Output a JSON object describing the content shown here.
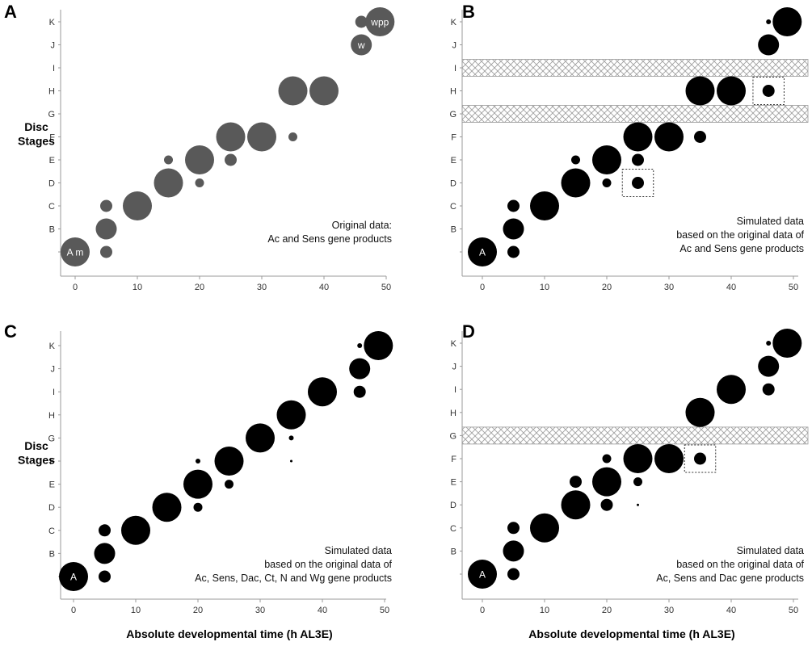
{
  "figure": {
    "y_axis_title": [
      "Disc",
      "Stages"
    ],
    "x_axis_title": "Absolute developmental time (h AL3E)"
  },
  "chart_data": [
    {
      "type": "scatter",
      "letter": "A",
      "color": "#595959",
      "xlim": [
        -2,
        52
      ],
      "xticks": [
        0,
        10,
        20,
        30,
        40,
        50
      ],
      "categories": [
        "A",
        "B",
        "C",
        "D",
        "E",
        "F",
        "G",
        "H",
        "I",
        "J",
        "K"
      ],
      "ytick_labels": [
        "",
        "B",
        "C",
        "D",
        "E",
        "F",
        "G",
        "H",
        "I",
        "J",
        "K"
      ],
      "annotation": [
        "Original data:",
        "Ac and Sens gene products"
      ],
      "hatched_stages": [],
      "dotted_boxes": [],
      "points": [
        {
          "x": 0,
          "stage": "A",
          "size": "large",
          "label": "A m"
        },
        {
          "x": 5,
          "stage": "A",
          "size": "small"
        },
        {
          "x": 5,
          "stage": "B",
          "size": "medium"
        },
        {
          "x": 5,
          "stage": "C",
          "size": "small"
        },
        {
          "x": 10,
          "stage": "C",
          "size": "large"
        },
        {
          "x": 15,
          "stage": "D",
          "size": "large"
        },
        {
          "x": 15,
          "stage": "E",
          "size": "tiny"
        },
        {
          "x": 20,
          "stage": "D",
          "size": "tiny"
        },
        {
          "x": 20,
          "stage": "E",
          "size": "large"
        },
        {
          "x": 25,
          "stage": "E",
          "size": "small"
        },
        {
          "x": 25,
          "stage": "F",
          "size": "large"
        },
        {
          "x": 30,
          "stage": "F",
          "size": "large"
        },
        {
          "x": 35,
          "stage": "F",
          "size": "tiny"
        },
        {
          "x": 35,
          "stage": "H",
          "size": "large"
        },
        {
          "x": 40,
          "stage": "H",
          "size": "large"
        },
        {
          "x": 46,
          "stage": "J",
          "size": "medium",
          "label": "w"
        },
        {
          "x": 46,
          "stage": "K",
          "size": "small"
        },
        {
          "x": 49,
          "stage": "K",
          "size": "large",
          "label": "wpp"
        }
      ]
    },
    {
      "type": "scatter",
      "letter": "B",
      "color": "#000000",
      "xlim": [
        -2,
        52
      ],
      "xticks": [
        0,
        10,
        20,
        30,
        40,
        50
      ],
      "categories": [
        "A",
        "B",
        "C",
        "D",
        "E",
        "F",
        "G",
        "H",
        "I",
        "J",
        "K"
      ],
      "ytick_labels": [
        "",
        "B",
        "C",
        "D",
        "E",
        "F",
        "G",
        "H",
        "I",
        "J",
        "K"
      ],
      "annotation": [
        "Simulated data",
        "based on the original data of",
        "Ac and Sens gene products"
      ],
      "hatched_stages": [
        "G",
        "I"
      ],
      "dotted_boxes": [
        {
          "x_from": 22.5,
          "x_to": 27.5,
          "stage": "D"
        },
        {
          "x_from": 43.5,
          "x_to": 48.5,
          "stage": "H"
        }
      ],
      "points": [
        {
          "x": 0,
          "stage": "A",
          "size": "large",
          "label": "A"
        },
        {
          "x": 5,
          "stage": "A",
          "size": "small"
        },
        {
          "x": 5,
          "stage": "B",
          "size": "medium"
        },
        {
          "x": 5,
          "stage": "C",
          "size": "small"
        },
        {
          "x": 10,
          "stage": "C",
          "size": "large"
        },
        {
          "x": 15,
          "stage": "D",
          "size": "large"
        },
        {
          "x": 15,
          "stage": "E",
          "size": "tiny"
        },
        {
          "x": 20,
          "stage": "D",
          "size": "tiny"
        },
        {
          "x": 20,
          "stage": "E",
          "size": "large"
        },
        {
          "x": 25,
          "stage": "D",
          "size": "small"
        },
        {
          "x": 25,
          "stage": "E",
          "size": "small"
        },
        {
          "x": 25,
          "stage": "F",
          "size": "large"
        },
        {
          "x": 30,
          "stage": "F",
          "size": "large"
        },
        {
          "x": 35,
          "stage": "F",
          "size": "small"
        },
        {
          "x": 35,
          "stage": "H",
          "size": "large"
        },
        {
          "x": 40,
          "stage": "H",
          "size": "large"
        },
        {
          "x": 46,
          "stage": "H",
          "size": "small"
        },
        {
          "x": 46,
          "stage": "J",
          "size": "medium"
        },
        {
          "x": 46,
          "stage": "K",
          "size": "dot"
        },
        {
          "x": 49,
          "stage": "K",
          "size": "large"
        }
      ]
    },
    {
      "type": "scatter",
      "letter": "C",
      "color": "#000000",
      "xlim": [
        -2,
        52
      ],
      "xticks": [
        0,
        10,
        20,
        30,
        40,
        50
      ],
      "categories": [
        "A",
        "B",
        "C",
        "D",
        "E",
        "F",
        "G",
        "H",
        "I",
        "J",
        "K"
      ],
      "ytick_labels": [
        "",
        "B",
        "C",
        "D",
        "E",
        "F",
        "G",
        "H",
        "I",
        "J",
        "K"
      ],
      "annotation": [
        "Simulated data",
        "based on the original data of",
        "Ac, Sens, Dac, Ct, N and Wg gene products"
      ],
      "hatched_stages": [],
      "dotted_boxes": [],
      "points": [
        {
          "x": 0,
          "stage": "A",
          "size": "large",
          "label": "A"
        },
        {
          "x": 5,
          "stage": "A",
          "size": "small"
        },
        {
          "x": 5,
          "stage": "B",
          "size": "medium"
        },
        {
          "x": 5,
          "stage": "C",
          "size": "small"
        },
        {
          "x": 10,
          "stage": "C",
          "size": "large"
        },
        {
          "x": 15,
          "stage": "D",
          "size": "large"
        },
        {
          "x": 20,
          "stage": "D",
          "size": "tiny"
        },
        {
          "x": 20,
          "stage": "E",
          "size": "large"
        },
        {
          "x": 20,
          "stage": "F",
          "size": "dot"
        },
        {
          "x": 25,
          "stage": "E",
          "size": "tiny"
        },
        {
          "x": 25,
          "stage": "F",
          "size": "large"
        },
        {
          "x": 30,
          "stage": "G",
          "size": "large"
        },
        {
          "x": 35,
          "stage": "F",
          "size": "speck"
        },
        {
          "x": 35,
          "stage": "G",
          "size": "dot"
        },
        {
          "x": 35,
          "stage": "H",
          "size": "large"
        },
        {
          "x": 40,
          "stage": "I",
          "size": "large"
        },
        {
          "x": 46,
          "stage": "I",
          "size": "small"
        },
        {
          "x": 46,
          "stage": "J",
          "size": "medium"
        },
        {
          "x": 46,
          "stage": "K",
          "size": "dot"
        },
        {
          "x": 49,
          "stage": "K",
          "size": "large"
        }
      ]
    },
    {
      "type": "scatter",
      "letter": "D",
      "color": "#000000",
      "xlim": [
        -2,
        52
      ],
      "xticks": [
        0,
        10,
        20,
        30,
        40,
        50
      ],
      "categories": [
        "A",
        "B",
        "C",
        "D",
        "E",
        "F",
        "G",
        "H",
        "I",
        "J",
        "K"
      ],
      "ytick_labels": [
        "",
        "B",
        "C",
        "D",
        "E",
        "F",
        "G",
        "H",
        "I",
        "J",
        "K"
      ],
      "annotation": [
        "Simulated data",
        "based on the original data of",
        "Ac, Sens and Dac gene products"
      ],
      "hatched_stages": [
        "G"
      ],
      "dotted_boxes": [
        {
          "x_from": 32.5,
          "x_to": 37.5,
          "stage": "F"
        }
      ],
      "points": [
        {
          "x": 0,
          "stage": "A",
          "size": "large",
          "label": "A"
        },
        {
          "x": 5,
          "stage": "A",
          "size": "small"
        },
        {
          "x": 5,
          "stage": "B",
          "size": "medium"
        },
        {
          "x": 5,
          "stage": "C",
          "size": "small"
        },
        {
          "x": 10,
          "stage": "C",
          "size": "large"
        },
        {
          "x": 15,
          "stage": "D",
          "size": "large"
        },
        {
          "x": 15,
          "stage": "E",
          "size": "small"
        },
        {
          "x": 20,
          "stage": "D",
          "size": "small"
        },
        {
          "x": 20,
          "stage": "E",
          "size": "large"
        },
        {
          "x": 20,
          "stage": "F",
          "size": "tiny"
        },
        {
          "x": 25,
          "stage": "D",
          "size": "speck"
        },
        {
          "x": 25,
          "stage": "E",
          "size": "tiny"
        },
        {
          "x": 25,
          "stage": "F",
          "size": "large"
        },
        {
          "x": 30,
          "stage": "F",
          "size": "large"
        },
        {
          "x": 35,
          "stage": "F",
          "size": "small"
        },
        {
          "x": 35,
          "stage": "H",
          "size": "large"
        },
        {
          "x": 40,
          "stage": "I",
          "size": "large"
        },
        {
          "x": 46,
          "stage": "I",
          "size": "small"
        },
        {
          "x": 46,
          "stage": "J",
          "size": "medium"
        },
        {
          "x": 46,
          "stage": "K",
          "size": "dot"
        },
        {
          "x": 49,
          "stage": "K",
          "size": "large"
        }
      ]
    }
  ]
}
